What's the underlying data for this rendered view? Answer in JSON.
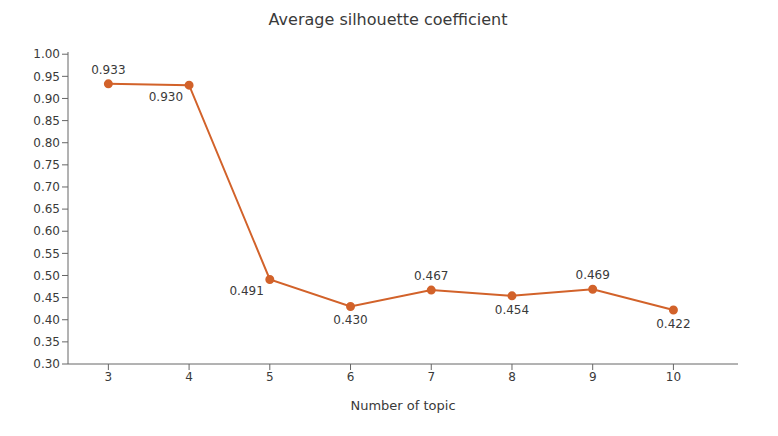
{
  "chart_data": {
    "type": "line",
    "title": "Average silhouette coefficient",
    "x_label": "Number of topic",
    "x": [
      3,
      4,
      5,
      6,
      7,
      8,
      9,
      10
    ],
    "values": [
      0.933,
      0.93,
      0.491,
      0.43,
      0.467,
      0.454,
      0.469,
      0.422
    ],
    "value_labels": [
      "0.933",
      "0.930",
      "0.491",
      "0.430",
      "0.467",
      "0.454",
      "0.469",
      "0.422"
    ],
    "data_labels": true,
    "color": "#D2622A",
    "marker": "circle",
    "grid": false,
    "xlim": [
      2.5,
      10.8
    ],
    "xticks": [
      3,
      4,
      5,
      6,
      7,
      8,
      9,
      10
    ],
    "ylim": [
      0.3,
      1.005
    ],
    "yticks": [
      {
        "value": 0.3,
        "label": "0.30"
      },
      0.35,
      {
        "value": 0.4,
        "label": "0.40"
      },
      0.45,
      {
        "value": 0.5,
        "label": "0.50"
      },
      0.55,
      {
        "value": 0.6,
        "label": "0.60"
      },
      0.65,
      {
        "value": 0.7,
        "label": "0.70"
      },
      0.75,
      {
        "value": 0.8,
        "label": "0.80"
      },
      0.85,
      {
        "value": 0.9,
        "label": "0.90"
      },
      0.95,
      {
        "value": 1,
        "label": "1.00"
      }
    ]
  }
}
